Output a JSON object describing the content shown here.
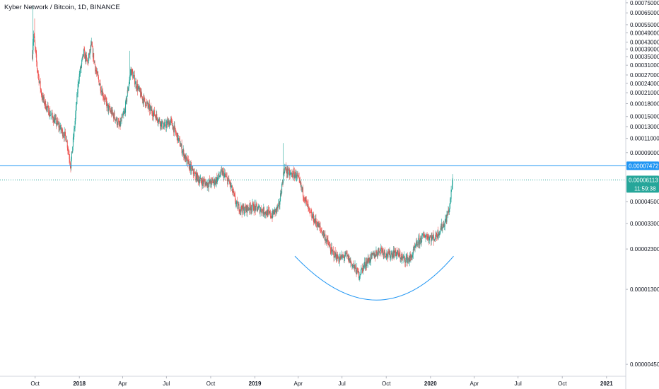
{
  "chart_data": {
    "type": "candlestick",
    "title": "Kyber Network / Bitcoin, 1D, BINANCE",
    "y_scale": "log",
    "y_ticks": [
      "0.00075000",
      "0.00065000",
      "0.00055000",
      "0.00049000",
      "0.00043000",
      "0.00039000",
      "0.00035000",
      "0.00031000",
      "0.00027000",
      "0.00024000",
      "0.00021000",
      "0.00018000",
      "0.00015000",
      "0.00013000",
      "0.00011000",
      "0.00009000",
      "0.00004500",
      "0.00003300",
      "0.00002300",
      "0.00001300",
      "0.00000450"
    ],
    "x_ticks": [
      {
        "date": "2017-10-01",
        "label": "Oct"
      },
      {
        "date": "2018-01-01",
        "label": "2018"
      },
      {
        "date": "2018-04-01",
        "label": "Apr"
      },
      {
        "date": "2018-07-01",
        "label": "Jul"
      },
      {
        "date": "2018-10-01",
        "label": "Oct"
      },
      {
        "date": "2019-01-01",
        "label": "2019"
      },
      {
        "date": "2019-04-01",
        "label": "Apr"
      },
      {
        "date": "2019-07-01",
        "label": "Jul"
      },
      {
        "date": "2019-10-01",
        "label": "Oct"
      },
      {
        "date": "2020-01-01",
        "label": "2020"
      },
      {
        "date": "2020-04-01",
        "label": "Apr"
      },
      {
        "date": "2020-07-01",
        "label": "Jul"
      },
      {
        "date": "2020-10-01",
        "label": "Oct"
      },
      {
        "date": "2021-01-01",
        "label": "2021"
      }
    ],
    "x_range": [
      "2017-07-20",
      "2021-02-10"
    ],
    "y_range": [
      3.8e-06,
      0.00078
    ],
    "series": {
      "up_color": "#26a69a",
      "down_color": "#ef5350",
      "close_path": [
        [
          "2017-09-25",
          0.00036
        ],
        [
          "2017-09-28",
          0.00048
        ],
        [
          "2017-10-05",
          0.0003
        ],
        [
          "2017-10-15",
          0.0002
        ],
        [
          "2017-10-25",
          0.00017
        ],
        [
          "2017-11-05",
          0.00015
        ],
        [
          "2017-11-20",
          0.00013
        ],
        [
          "2017-12-05",
          0.00011
        ],
        [
          "2017-12-14",
          7.5e-05
        ],
        [
          "2017-12-22",
          0.00013
        ],
        [
          "2017-12-30",
          0.00025
        ],
        [
          "2018-01-10",
          0.00037
        ],
        [
          "2018-01-18",
          0.00032
        ],
        [
          "2018-01-26",
          0.00041
        ],
        [
          "2018-02-05",
          0.00028
        ],
        [
          "2018-02-18",
          0.00021
        ],
        [
          "2018-03-01",
          0.00017
        ],
        [
          "2018-03-15",
          0.00015
        ],
        [
          "2018-03-25",
          0.00013
        ],
        [
          "2018-04-05",
          0.00016
        ],
        [
          "2018-04-18",
          0.00029
        ],
        [
          "2018-04-28",
          0.00024
        ],
        [
          "2018-05-10",
          0.0002
        ],
        [
          "2018-05-25",
          0.00017
        ],
        [
          "2018-06-10",
          0.00015
        ],
        [
          "2018-06-25",
          0.00013
        ],
        [
          "2018-07-10",
          0.00014
        ],
        [
          "2018-07-25",
          0.00011
        ],
        [
          "2018-08-10",
          8.2e-05
        ],
        [
          "2018-08-25",
          6.8e-05
        ],
        [
          "2018-09-10",
          6e-05
        ],
        [
          "2018-09-25",
          5.8e-05
        ],
        [
          "2018-10-10",
          6e-05
        ],
        [
          "2018-10-25",
          6.8e-05
        ],
        [
          "2018-11-10",
          5.8e-05
        ],
        [
          "2018-11-25",
          4.2e-05
        ],
        [
          "2018-12-10",
          4e-05
        ],
        [
          "2018-12-25",
          4.2e-05
        ],
        [
          "2019-01-15",
          4e-05
        ],
        [
          "2019-02-05",
          3.7e-05
        ],
        [
          "2019-02-20",
          4.2e-05
        ],
        [
          "2019-03-03",
          7.2e-05
        ],
        [
          "2019-03-15",
          6.6e-05
        ],
        [
          "2019-03-28",
          6.6e-05
        ],
        [
          "2019-04-10",
          5.2e-05
        ],
        [
          "2019-04-25",
          3.8e-05
        ],
        [
          "2019-05-10",
          3.3e-05
        ],
        [
          "2019-05-25",
          2.8e-05
        ],
        [
          "2019-06-10",
          2.2e-05
        ],
        [
          "2019-06-25",
          2e-05
        ],
        [
          "2019-07-10",
          2.1e-05
        ],
        [
          "2019-07-25",
          1.8e-05
        ],
        [
          "2019-08-05",
          1.6e-05
        ],
        [
          "2019-08-20",
          1.9e-05
        ],
        [
          "2019-09-05",
          2.1e-05
        ],
        [
          "2019-09-20",
          2.3e-05
        ],
        [
          "2019-10-05",
          2.1e-05
        ],
        [
          "2019-10-20",
          2.2e-05
        ],
        [
          "2019-11-05",
          2e-05
        ],
        [
          "2019-11-20",
          2e-05
        ],
        [
          "2019-12-05",
          2.5e-05
        ],
        [
          "2019-12-20",
          2.8e-05
        ],
        [
          "2020-01-01",
          2.7e-05
        ],
        [
          "2020-01-10",
          2.7e-05
        ],
        [
          "2020-01-20",
          3e-05
        ],
        [
          "2020-02-01",
          3.4e-05
        ],
        [
          "2020-02-10",
          4.2e-05
        ],
        [
          "2020-02-16",
          6.1e-05
        ]
      ]
    },
    "horizontal_line": {
      "value": 7.472e-05,
      "label": "0.00007472",
      "color": "#2196f3"
    },
    "last_price": {
      "value": 6.113e-05,
      "label": "0.00006113",
      "countdown": "11:59:38",
      "color": "#26a69a"
    },
    "rounding_arc": {
      "color": "#2196f3",
      "start": [
        "2019-03-25",
        2.08e-05
      ],
      "control": [
        "2019-09-15",
        6e-06
      ],
      "end": [
        "2020-02-18",
        2.08e-05
      ]
    }
  }
}
